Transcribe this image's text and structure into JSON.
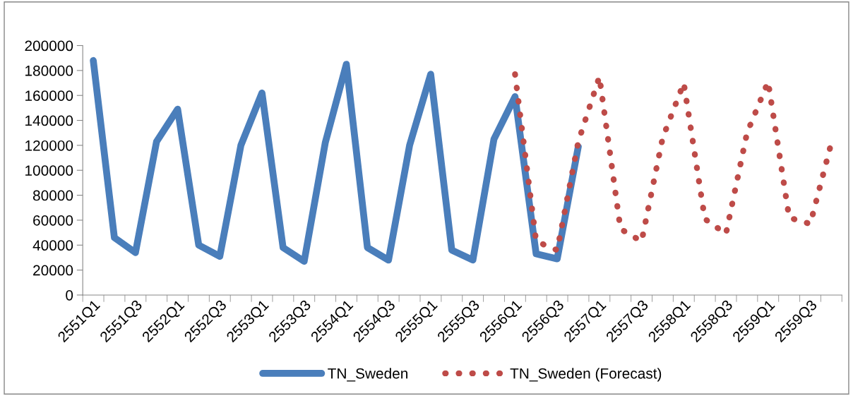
{
  "chart_data": {
    "type": "line",
    "categories": [
      "2551Q1",
      null,
      "2551Q3",
      null,
      "2552Q1",
      null,
      "2552Q3",
      null,
      "2553Q1",
      null,
      "2553Q3",
      null,
      "2554Q1",
      null,
      "2554Q3",
      null,
      "2555Q1",
      null,
      "2555Q3",
      null,
      "2556Q1",
      null,
      "2556Q3",
      null,
      "2557Q1",
      null,
      "2557Q3",
      null,
      "2558Q1",
      null,
      "2558Q3",
      null,
      "2559Q1",
      null,
      "2559Q3",
      null
    ],
    "series": [
      {
        "name": "TN_Sweden",
        "color": "#4a7ebb",
        "line_style": "solid",
        "values": [
          188000,
          46000,
          34000,
          123000,
          149000,
          40000,
          31000,
          120000,
          162000,
          38000,
          27000,
          122000,
          185000,
          38000,
          28000,
          120000,
          177000,
          36000,
          28000,
          125000,
          159000,
          33000,
          29000,
          119000,
          null,
          null,
          null,
          null,
          null,
          null,
          null,
          null,
          null,
          null,
          null,
          null
        ]
      },
      {
        "name": "TN_Sweden (Forecast)",
        "color": "#be4b48",
        "line_style": "dotted",
        "values": [
          null,
          null,
          null,
          null,
          null,
          null,
          null,
          null,
          null,
          null,
          null,
          null,
          null,
          null,
          null,
          null,
          null,
          null,
          null,
          null,
          177000,
          43000,
          36000,
          123000,
          175000,
          53000,
          43000,
          126000,
          170000,
          61000,
          49000,
          130000,
          171000,
          62000,
          57000,
          122000
        ]
      }
    ],
    "ylim": [
      0,
      200000
    ],
    "yticks": [
      0,
      20000,
      40000,
      60000,
      80000,
      100000,
      120000,
      140000,
      160000,
      180000,
      200000
    ],
    "grid": false,
    "legend": "bottom"
  }
}
